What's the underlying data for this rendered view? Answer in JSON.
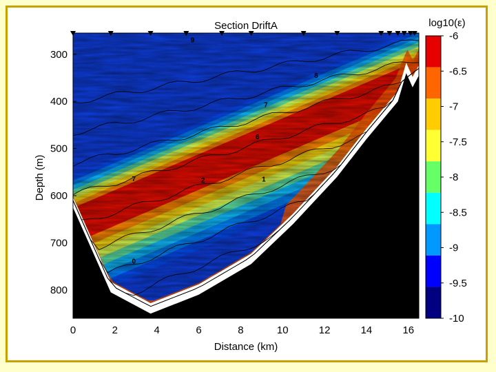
{
  "chart_data": {
    "type": "heatmap",
    "title": "Section DriftA",
    "xlabel": "Distance (km)",
    "ylabel": "Depth (m)",
    "xlim": [
      0,
      16.5
    ],
    "ylim": [
      860,
      255
    ],
    "x_ticks": [
      0,
      2,
      4,
      6,
      8,
      10,
      12,
      14,
      16
    ],
    "y_ticks": [
      300,
      400,
      500,
      600,
      700,
      800
    ],
    "colorbar": {
      "label": "log10(ε)",
      "min": -10,
      "max": -6,
      "ticks": [
        "-6",
        "-6.5",
        "-7",
        "-7.5",
        "-8",
        "-8.5",
        "-9",
        "-9.5",
        "-10"
      ],
      "colors": [
        "#e60000",
        "#ff6600",
        "#ffcc00",
        "#ffff33",
        "#66ff66",
        "#00ffff",
        "#0099ff",
        "#0000ff",
        "#000080"
      ]
    },
    "station_positions_km": [
      0.0,
      1.8,
      3.7,
      5.4,
      7.1,
      8.5,
      11.0,
      12.6,
      14.7,
      15.1,
      15.5,
      15.8,
      16.1,
      16.3
    ],
    "contour_labels": [
      {
        "text": "9",
        "x_km": 5.7,
        "depth_m": 275
      },
      {
        "text": "8",
        "x_km": 11.6,
        "depth_m": 350
      },
      {
        "text": "7",
        "x_km": 9.2,
        "depth_m": 412
      },
      {
        "text": "6",
        "x_km": 8.8,
        "depth_m": 480
      },
      {
        "text": "7",
        "x_km": 2.9,
        "depth_m": 569
      },
      {
        "text": "2",
        "x_km": 6.2,
        "depth_m": 572
      },
      {
        "text": "1",
        "x_km": 9.1,
        "depth_m": 570
      },
      {
        "text": "0",
        "x_km": 2.9,
        "depth_m": 744
      }
    ],
    "seafloor_profile": [
      {
        "x_km": 0.0,
        "depth_m": 625
      },
      {
        "x_km": 1.8,
        "depth_m": 805
      },
      {
        "x_km": 3.7,
        "depth_m": 850
      },
      {
        "x_km": 6.0,
        "depth_m": 810
      },
      {
        "x_km": 8.5,
        "depth_m": 745
      },
      {
        "x_km": 10.5,
        "depth_m": 660
      },
      {
        "x_km": 12.6,
        "depth_m": 560
      },
      {
        "x_km": 14.0,
        "depth_m": 480
      },
      {
        "x_km": 15.5,
        "depth_m": 400
      },
      {
        "x_km": 15.9,
        "depth_m": 340
      },
      {
        "x_km": 16.2,
        "depth_m": 370
      },
      {
        "x_km": 16.5,
        "depth_m": 345
      }
    ]
  }
}
